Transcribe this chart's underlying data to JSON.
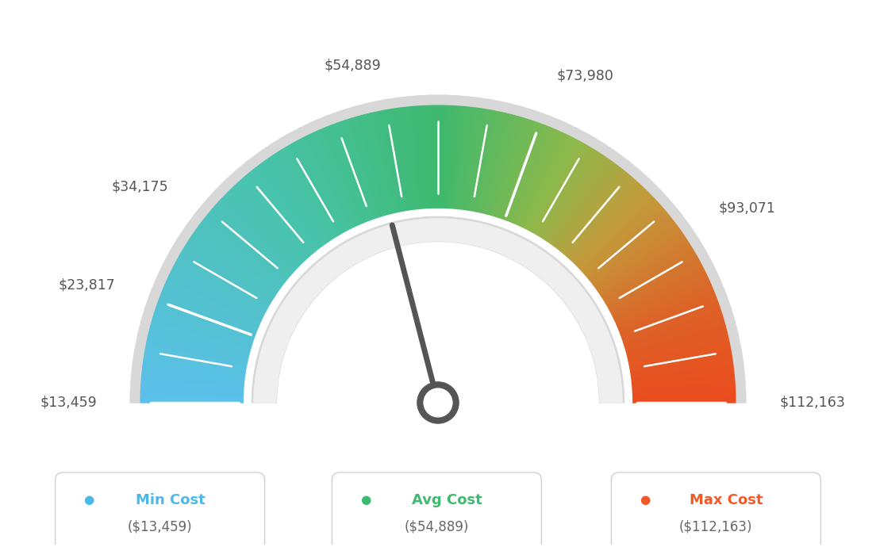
{
  "min_val": 13459,
  "max_val": 112163,
  "avg_val": 54889,
  "tick_values": [
    13459,
    23817,
    34175,
    54889,
    73980,
    93071,
    112163
  ],
  "legend": [
    {
      "label": "Min Cost",
      "value": "($13,459)",
      "color": "#4db8e8"
    },
    {
      "label": "Avg Cost",
      "value": "($54,889)",
      "color": "#3dba6e"
    },
    {
      "label": "Max Cost",
      "value": "($112,163)",
      "color": "#f05a28"
    }
  ],
  "label_texts": [
    "$13,459",
    "$23,817",
    "$34,175",
    "$54,889",
    "$73,980",
    "$93,071",
    "$112,163"
  ],
  "label_values": [
    13459,
    23817,
    34175,
    54889,
    73980,
    93071,
    112163
  ],
  "background_color": "#ffffff",
  "needle_color": "#555555",
  "gauge_outer_border_color": "#cccccc",
  "gauge_inner_border_color": "#cccccc"
}
